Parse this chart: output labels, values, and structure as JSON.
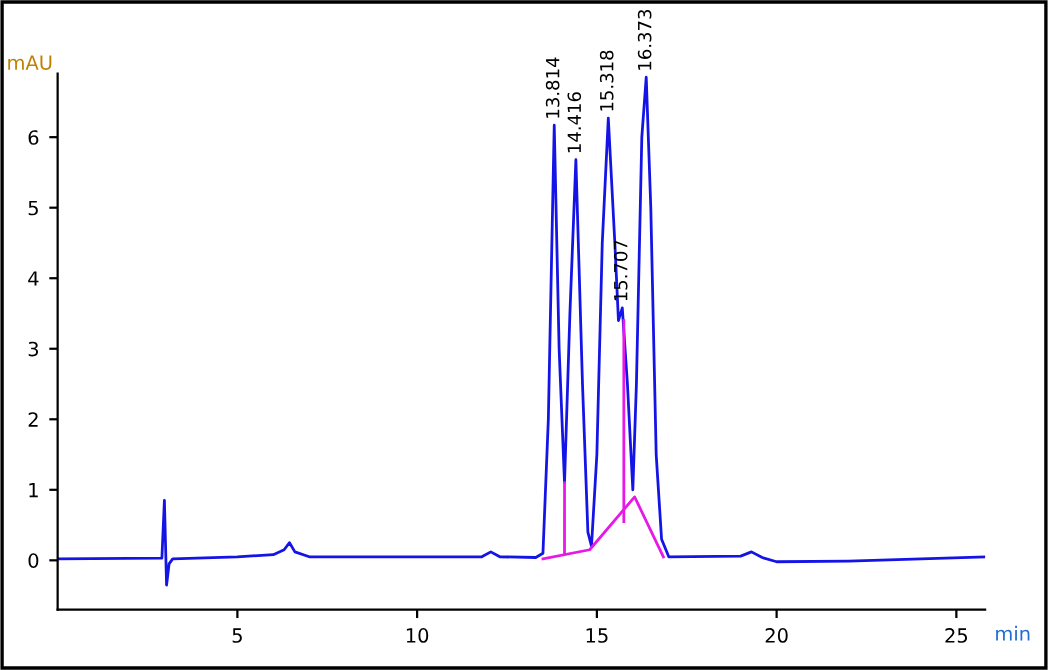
{
  "chart_data": {
    "type": "line",
    "xlabel": "min",
    "ylabel": "mAU",
    "xlim": [
      0,
      25.8
    ],
    "ylim": [
      -0.7,
      6.9
    ],
    "xticks": [
      5,
      10,
      15,
      20,
      25
    ],
    "yticks": [
      0,
      1,
      2,
      3,
      4,
      5,
      6
    ],
    "grid": false,
    "legend": false,
    "marker": "none",
    "line_style": "solid",
    "series": [
      {
        "color": "#1414e6",
        "x": [
          0,
          2.9,
          2.97,
          3.03,
          3.1,
          3.2,
          5,
          6.0,
          6.3,
          6.45,
          6.6,
          7.0,
          11.8,
          12.05,
          12.3,
          13.3,
          13.5,
          13.65,
          13.814,
          13.95,
          14.1,
          14.25,
          14.416,
          14.6,
          14.75,
          14.85,
          15.0,
          15.15,
          15.318,
          15.5,
          15.6,
          15.707,
          15.85,
          16.0,
          16.1,
          16.25,
          16.373,
          16.5,
          16.65,
          16.8,
          17.0,
          19.0,
          19.3,
          19.6,
          20,
          22,
          25.8
        ],
        "values": [
          0.02,
          0.03,
          0.85,
          -0.35,
          -0.05,
          0.02,
          0.05,
          0.08,
          0.15,
          0.25,
          0.12,
          0.05,
          0.05,
          0.12,
          0.05,
          0.04,
          0.1,
          2.0,
          6.17,
          3.0,
          1.1,
          3.5,
          5.68,
          2.5,
          0.4,
          0.2,
          1.5,
          4.5,
          6.27,
          4.5,
          3.4,
          3.58,
          2.5,
          1.0,
          2.5,
          6.0,
          6.85,
          5.0,
          1.5,
          0.3,
          0.05,
          0.06,
          0.12,
          0.04,
          -0.02,
          -0.01,
          0.05
        ]
      },
      {
        "color": "#e619e6",
        "x": [
          13.5,
          14.8,
          16.05,
          16.85
        ],
        "values": [
          0.02,
          0.15,
          0.9,
          0.05
        ]
      },
      {
        "color": "#e619e6",
        "x": [
          14.1,
          14.1
        ],
        "values": [
          0.1,
          1.1
        ]
      },
      {
        "color": "#e619e6",
        "x": [
          15.75,
          15.75
        ],
        "values": [
          0.55,
          3.4
        ]
      }
    ],
    "annotations": [
      {
        "text": "13.814",
        "x": 13.814,
        "y": 6.17
      },
      {
        "text": "14.416",
        "x": 14.416,
        "y": 5.68
      },
      {
        "text": "15.318",
        "x": 15.318,
        "y": 6.27
      },
      {
        "text": "15.707",
        "x": 15.707,
        "y": 3.58
      },
      {
        "text": "16.373",
        "x": 16.373,
        "y": 6.85
      }
    ]
  }
}
